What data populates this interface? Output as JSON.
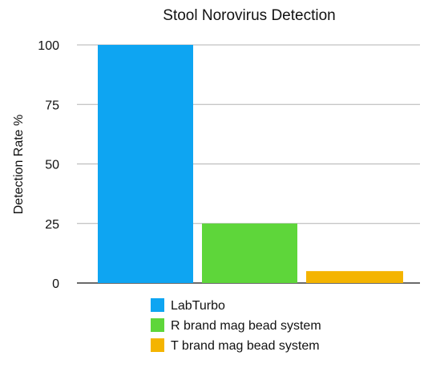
{
  "chart_data": {
    "type": "bar",
    "title": "Stool Norovirus Detection",
    "ylabel": "Detection Rate %",
    "xlabel": "",
    "ylim": [
      0,
      100
    ],
    "yticks": [
      0,
      25,
      50,
      75,
      100
    ],
    "grid": true,
    "legend_position": "bottom",
    "series": [
      {
        "name": "LabTurbo",
        "color": "#0ea5f2",
        "value": 100
      },
      {
        "name": "R brand mag bead system",
        "color": "#5ed63a",
        "value": 25
      },
      {
        "name": "T brand mag bead system",
        "color": "#f4b400",
        "value": 5
      }
    ]
  }
}
